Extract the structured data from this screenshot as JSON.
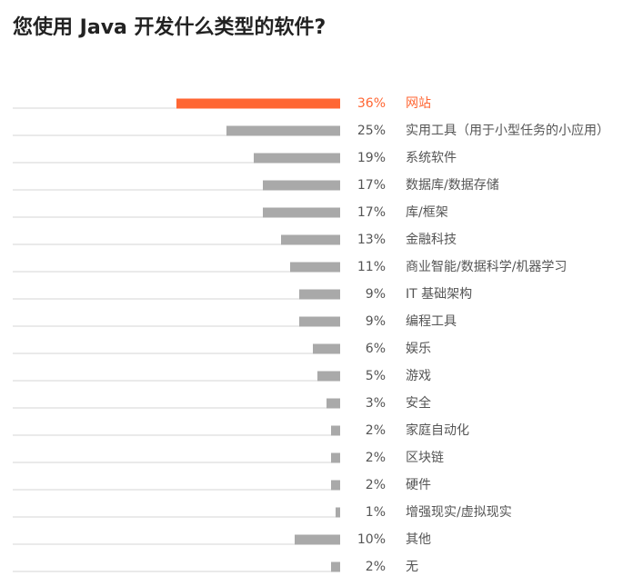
{
  "title": "您使用 Java 开发什么类型的软件?",
  "colors": {
    "highlight": "#ff6633",
    "bar": "#a9a9a9",
    "baseline": "#d5d5d5",
    "text": "#555555"
  },
  "chart_data": {
    "type": "bar",
    "orientation": "horizontal",
    "categories": [
      "网站",
      "实用工具（用于小型任务的小应用）",
      "系统软件",
      "数据库/数据存储",
      "库/框架",
      "金融科技",
      "商业智能/数据科学/机器学习",
      "IT 基础架构",
      "编程工具",
      "娱乐",
      "游戏",
      "安全",
      "家庭自动化",
      "区块链",
      "硬件",
      "增强现实/虚拟现实",
      "其他",
      "无"
    ],
    "values": [
      36,
      25,
      19,
      17,
      17,
      13,
      11,
      9,
      9,
      6,
      5,
      3,
      2,
      2,
      2,
      1,
      10,
      2
    ],
    "value_labels": [
      "36%",
      "25%",
      "19%",
      "17%",
      "17%",
      "13%",
      "11%",
      "9%",
      "9%",
      "6%",
      "5%",
      "3%",
      "2%",
      "2%",
      "2%",
      "1%",
      "10%",
      "2%"
    ],
    "highlight_index": 0,
    "xlim": [
      0,
      100
    ],
    "grid": false,
    "legend": "none"
  }
}
